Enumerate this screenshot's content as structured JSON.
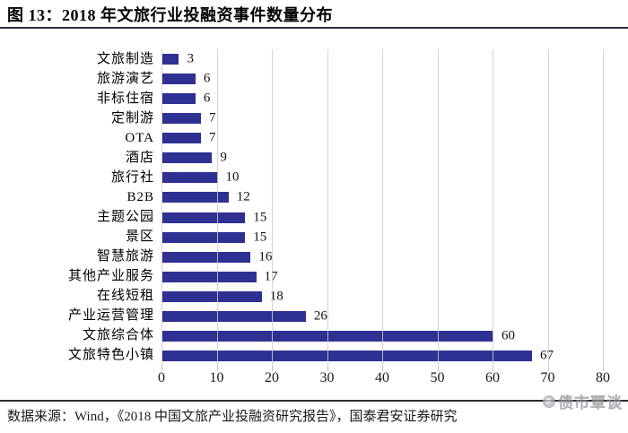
{
  "figure": {
    "title": "图 13：2018 年文旅行业投融资事件数量分布",
    "source": "数据来源：Wind，《2018 中国文旅产业投融资研究报告》，国泰君安证券研究",
    "watermark": "债市覃谈"
  },
  "chart_data": {
    "type": "bar",
    "orientation": "horizontal",
    "title": "2018 年文旅行业投融资事件数量分布",
    "categories": [
      "文旅制造",
      "旅游演艺",
      "非标住宿",
      "定制游",
      "OTA",
      "酒店",
      "旅行社",
      "B2B",
      "主题公园",
      "景区",
      "智慧旅游",
      "其他产业服务",
      "在线短租",
      "产业运营管理",
      "文旅综合体",
      "文旅特色小镇"
    ],
    "values": [
      3,
      6,
      6,
      7,
      7,
      9,
      10,
      12,
      15,
      15,
      16,
      17,
      18,
      26,
      60,
      67
    ],
    "xlabel": "",
    "ylabel": "",
    "xlim": [
      0,
      80
    ],
    "xticks": [
      0,
      10,
      20,
      30,
      40,
      50,
      60,
      70,
      80
    ],
    "grid": true,
    "gridlines_over_bars": true,
    "data_labels": true,
    "legend": "none",
    "bar_color": "#2e3192",
    "gridline_color": "#cdcdd2"
  }
}
